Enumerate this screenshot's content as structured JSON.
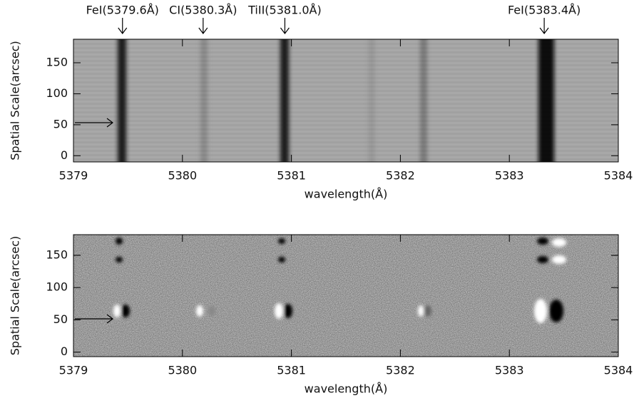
{
  "chart_data": [
    {
      "type": "image",
      "xlabel": "wavelength(Å)",
      "ylabel": "Spatial Scale(arcsec)",
      "xlim": [
        5379,
        5384
      ],
      "xticks": [
        5379,
        5380,
        5381,
        5382,
        5383,
        5384
      ],
      "ylim": [
        -10,
        188
      ],
      "yticks": [
        0,
        50,
        100,
        150
      ],
      "annotations": [
        {
          "text": "FeI(5379.6Å)",
          "x": 5379.45
        },
        {
          "text": "CI(5380.3Å)",
          "x": 5380.19
        },
        {
          "text": "TiII(5381.0Å)",
          "x": 5380.94
        },
        {
          "text": "FeI(5383.4Å)",
          "x": 5383.32
        }
      ]
    },
    {
      "type": "image",
      "xlabel": "wavelength(Å)",
      "ylabel": "Spatial Scale(arcsec)",
      "xlim": [
        5379,
        5384
      ],
      "xticks": [
        5379,
        5380,
        5381,
        5382,
        5383,
        5384
      ],
      "ylim": [
        -7,
        182
      ],
      "yticks": [
        0,
        50,
        100,
        150,
        {
          "value": 150,
          "label": "150"
        }
      ]
    }
  ]
}
